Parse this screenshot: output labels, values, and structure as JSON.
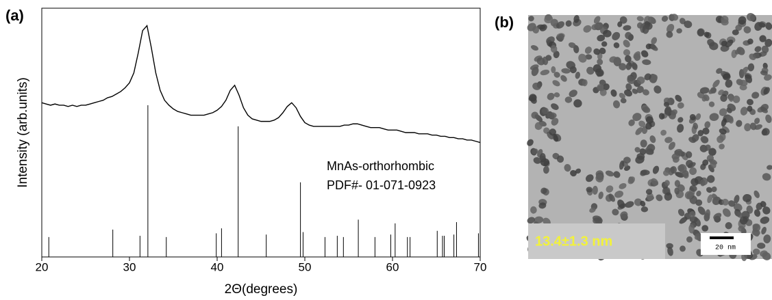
{
  "chart_data": {
    "type": "line",
    "panel_label": "(a)",
    "x_label": "2Θ(degrees)",
    "y_label": "Intensity (arb.units)",
    "annotations": [
      "MnAs-orthorhombic",
      "PDF#- 01-071-0923"
    ],
    "xlim": [
      20,
      70
    ],
    "xticks": [
      20,
      30,
      40,
      50,
      60,
      70
    ],
    "ylim": [
      0,
      100
    ],
    "pattern": {
      "color": "#000000",
      "x": [
        20,
        20.5,
        21,
        21.5,
        22,
        22.5,
        23,
        23.5,
        24,
        24.5,
        25,
        25.5,
        26,
        26.5,
        27,
        27.5,
        28,
        28.5,
        29,
        29.5,
        30,
        30.5,
        31,
        31.5,
        32,
        32.5,
        33,
        33.5,
        34,
        34.5,
        35,
        35.5,
        36,
        36.5,
        37,
        37.5,
        38,
        38.5,
        39,
        39.5,
        40,
        40.5,
        41,
        41.5,
        42,
        42.5,
        43,
        43.5,
        44,
        44.5,
        45,
        45.5,
        46,
        46.5,
        47,
        47.5,
        48,
        48.5,
        49,
        49.5,
        50,
        50.5,
        51,
        51.5,
        52,
        52.5,
        53,
        53.5,
        54,
        54.5,
        55,
        55.5,
        56,
        56.5,
        57,
        57.5,
        58,
        58.5,
        59,
        59.5,
        60,
        60.5,
        61,
        61.5,
        62,
        62.5,
        63,
        63.5,
        64,
        64.5,
        65,
        65.5,
        66,
        66.5,
        67,
        67.5,
        68,
        68.5,
        69,
        69.5,
        70
      ],
      "values": [
        62,
        61.5,
        61,
        61.5,
        61,
        61,
        60.5,
        61,
        60.5,
        61,
        61,
        61.5,
        62,
        62.5,
        63,
        64,
        64.5,
        65.5,
        66.5,
        68,
        70,
        74,
        82,
        91,
        93,
        84,
        74,
        67,
        63,
        61,
        59.5,
        58.5,
        58,
        57.5,
        57,
        57,
        57,
        57,
        57.5,
        58,
        59,
        60.5,
        63,
        67,
        69,
        65,
        60,
        57,
        55.5,
        55,
        54.5,
        54.5,
        54.5,
        55,
        56,
        58,
        60.5,
        62,
        60,
        56.5,
        54,
        53,
        52.5,
        52.5,
        52.5,
        52.5,
        52.5,
        52.5,
        52.5,
        53,
        53,
        53.5,
        53.5,
        53,
        52.5,
        52,
        52,
        52,
        51.5,
        51,
        51,
        51,
        50.5,
        50,
        50,
        50,
        49.5,
        49.5,
        49.5,
        49,
        49,
        48.5,
        48.5,
        48,
        48,
        47.5,
        47.5,
        47,
        47,
        46.5,
        46
      ]
    },
    "reference": {
      "color": "#000000",
      "x": [
        20.8,
        28.1,
        31.2,
        32.1,
        34.2,
        39.9,
        40.5,
        42.4,
        45.6,
        49.5,
        49.8,
        52.3,
        53.7,
        54.4,
        56.1,
        58.0,
        59.8,
        60.3,
        61.7,
        62.0,
        65.1,
        65.7,
        65.9,
        67.0,
        67.3,
        69.8
      ],
      "values": [
        8,
        11,
        8.5,
        61,
        8,
        9.5,
        11.5,
        52.5,
        9,
        30,
        10,
        8,
        8.5,
        8,
        15,
        8,
        9,
        13.5,
        8,
        8,
        10.5,
        8.5,
        8.5,
        9,
        14,
        9.5
      ]
    }
  },
  "image_panel": {
    "panel_label": "(b)",
    "size_label": "13.4±1.3 nm",
    "scale_bar": "20 nm"
  }
}
